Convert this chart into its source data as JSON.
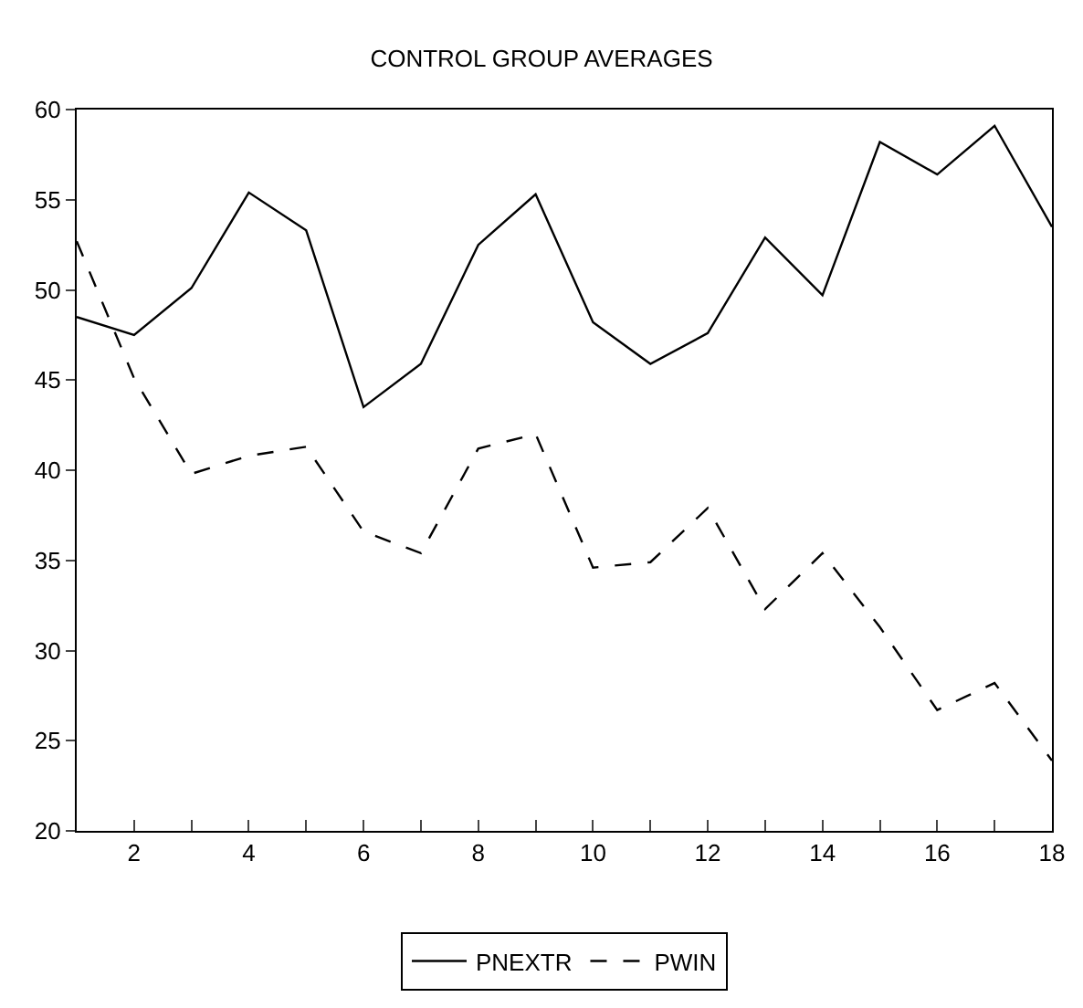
{
  "chart_data": {
    "type": "line",
    "title": "CONTROL GROUP AVERAGES",
    "x": [
      1,
      2,
      3,
      4,
      5,
      6,
      7,
      8,
      9,
      10,
      11,
      12,
      13,
      14,
      15,
      16,
      17,
      18
    ],
    "series": [
      {
        "name": "PNEXTR",
        "color": "#000000",
        "line_style": "solid",
        "values": [
          48.5,
          47.5,
          50.1,
          55.4,
          53.3,
          43.5,
          45.9,
          52.5,
          55.3,
          48.2,
          45.9,
          47.6,
          52.9,
          49.7,
          58.2,
          56.4,
          59.1,
          53.5
        ]
      },
      {
        "name": "PWIN",
        "color": "#000000",
        "line_style": "dashed",
        "values": [
          52.7,
          45.1,
          39.8,
          40.8,
          41.3,
          36.6,
          35.4,
          41.2,
          42.0,
          34.6,
          34.9,
          37.9,
          32.3,
          35.4,
          31.3,
          26.7,
          28.2,
          23.9
        ]
      }
    ],
    "xlim": [
      1,
      18
    ],
    "xticks": [
      {
        "value": 1,
        "label": null
      },
      2,
      {
        "value": 3,
        "label": null
      },
      4,
      {
        "value": 5,
        "label": null
      },
      6,
      {
        "value": 7,
        "label": null
      },
      8,
      {
        "value": 9,
        "label": null
      },
      10,
      {
        "value": 11,
        "label": null
      },
      12,
      {
        "value": 13,
        "label": null
      },
      14,
      {
        "value": 15,
        "label": null
      },
      16,
      {
        "value": 17,
        "label": null
      },
      18
    ],
    "ylim": [
      20,
      60
    ],
    "yticks": [
      20,
      25,
      30,
      35,
      40,
      45,
      50,
      55,
      60
    ],
    "legend": "bottom",
    "marker": "none"
  }
}
